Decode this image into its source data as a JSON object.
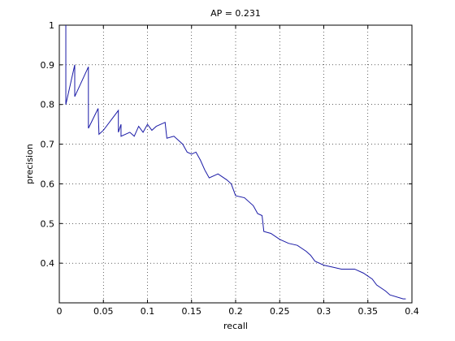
{
  "chart_data": {
    "type": "line",
    "title": "AP = 0.231",
    "x_label": "recall",
    "y_label": "precision",
    "series": [
      {
        "color": "#1a1aa6",
        "x": [
          0.0074,
          0.0074,
          0.0175,
          0.0175,
          0.033,
          0.033,
          0.044,
          0.045,
          0.05,
          0.067,
          0.067,
          0.07,
          0.07,
          0.08,
          0.085,
          0.09,
          0.095,
          0.1,
          0.105,
          0.11,
          0.12,
          0.122,
          0.13,
          0.14,
          0.145,
          0.15,
          0.155,
          0.16,
          0.165,
          0.17,
          0.18,
          0.19,
          0.195,
          0.2,
          0.21,
          0.22,
          0.225,
          0.23,
          0.232,
          0.24,
          0.25,
          0.26,
          0.27,
          0.28,
          0.285,
          0.29,
          0.3,
          0.31,
          0.32,
          0.335,
          0.345,
          0.355,
          0.36,
          0.37,
          0.375,
          0.39,
          0.393
        ],
        "values": [
          1,
          0.8,
          0.9,
          0.82,
          0.895,
          0.74,
          0.79,
          0.725,
          0.735,
          0.785,
          0.73,
          0.75,
          0.72,
          0.73,
          0.72,
          0.745,
          0.73,
          0.75,
          0.735,
          0.745,
          0.755,
          0.715,
          0.72,
          0.7,
          0.68,
          0.675,
          0.68,
          0.66,
          0.635,
          0.615,
          0.625,
          0.61,
          0.6,
          0.57,
          0.565,
          0.545,
          0.525,
          0.52,
          0.48,
          0.475,
          0.46,
          0.45,
          0.445,
          0.43,
          0.42,
          0.405,
          0.395,
          0.39,
          0.385,
          0.385,
          0.375,
          0.36,
          0.345,
          0.33,
          0.32,
          0.31,
          0.31
        ]
      }
    ],
    "xlim": [
      0,
      0.4
    ],
    "ylim": [
      0.3,
      1
    ],
    "xticks": [
      0,
      0.05,
      0.1,
      0.15,
      0.2,
      0.25,
      0.3,
      0.35,
      0.4
    ],
    "yticks": [
      0.4,
      0.5,
      0.6,
      0.7,
      0.8,
      0.9,
      1
    ],
    "grid": true
  }
}
